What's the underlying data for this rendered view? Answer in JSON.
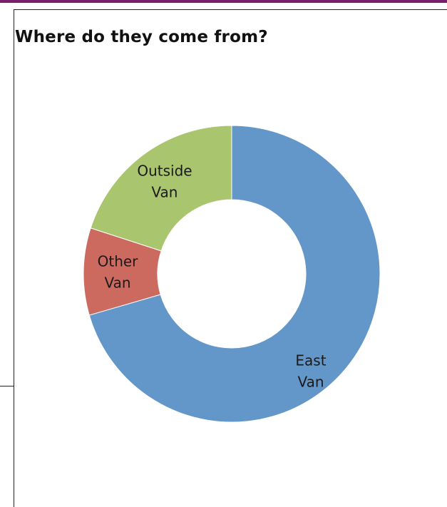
{
  "chart_data": {
    "type": "pie",
    "variant": "donut",
    "title": "Where do they come from?",
    "slices": [
      {
        "label_lines": [
          "East",
          "Van"
        ],
        "value": 70.5,
        "color": "#6497c9"
      },
      {
        "label_lines": [
          "Other",
          "Van"
        ],
        "value": 9.5,
        "color": "#cd6a60"
      },
      {
        "label_lines": [
          "Outside",
          "Van"
        ],
        "value": 20.0,
        "color": "#a9c56d"
      }
    ],
    "legend": "none"
  }
}
